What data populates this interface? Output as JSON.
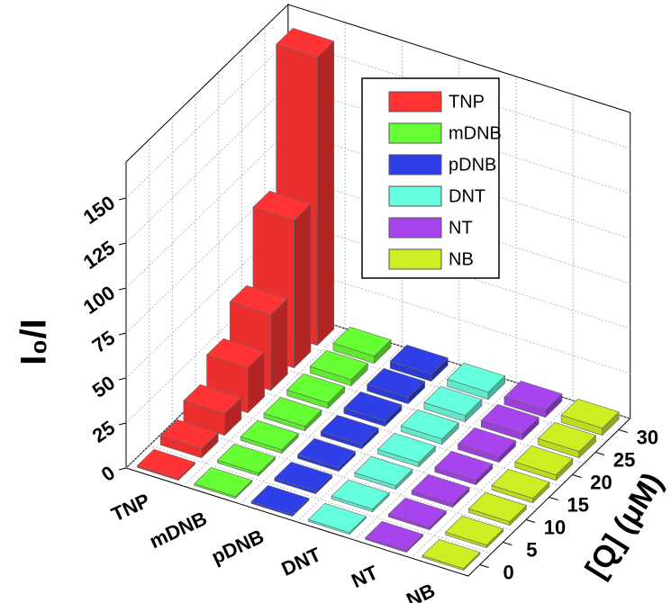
{
  "chart_data": {
    "type": "bar3d",
    "ylabel": "I₀/I",
    "xlabel": "[Q] (μM)",
    "x": [
      0,
      5,
      10,
      15,
      20,
      25,
      30
    ],
    "series": [
      {
        "name": "TNP",
        "color": "#ff3333",
        "values": [
          1,
          5,
          12,
          25,
          42,
          82,
          160
        ]
      },
      {
        "name": "mDNB",
        "color": "#66ff33",
        "values": [
          1,
          1.5,
          2,
          2.5,
          3,
          3.5,
          4
        ]
      },
      {
        "name": "pDNB",
        "color": "#2f3fe8",
        "values": [
          1,
          1.5,
          2,
          2.5,
          3,
          3.5,
          4
        ]
      },
      {
        "name": "DNT",
        "color": "#66ffdd",
        "values": [
          1,
          1.5,
          2,
          2.5,
          3,
          3.5,
          4
        ]
      },
      {
        "name": "NT",
        "color": "#a844ee",
        "values": [
          1,
          1.5,
          2,
          2.5,
          3,
          3.5,
          4
        ]
      },
      {
        "name": "NB",
        "color": "#ccee22",
        "values": [
          1,
          1.5,
          2,
          2.5,
          3,
          3.5,
          4
        ]
      }
    ],
    "ylim": [
      0,
      170
    ],
    "yticks": [
      0,
      25,
      50,
      75,
      100,
      125,
      150
    ],
    "grid": true
  }
}
